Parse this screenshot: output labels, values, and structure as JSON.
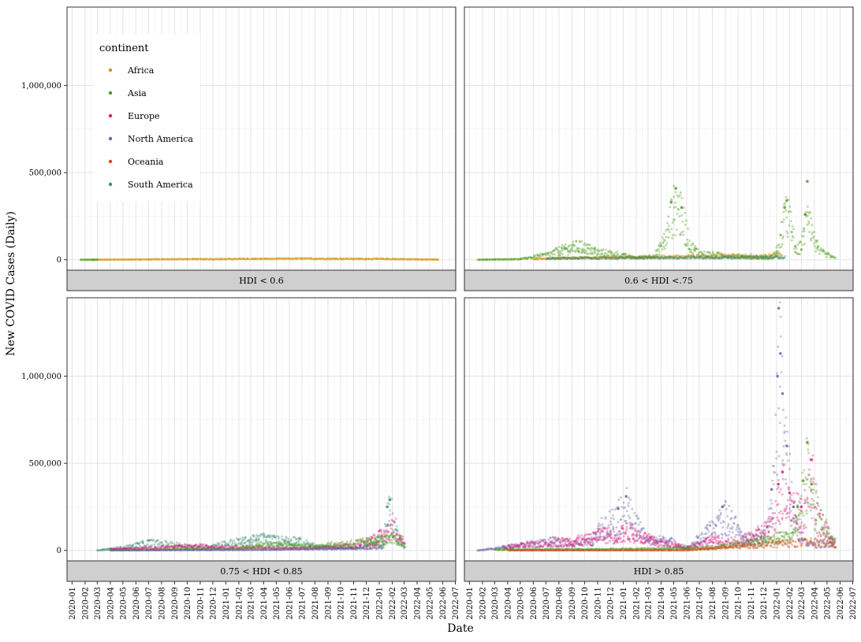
{
  "chart_data": {
    "type": "scatter",
    "xlabel": "Date",
    "ylabel": "New COVID Cases (Daily)",
    "x_ticks": [
      "2020-01",
      "2020-02",
      "2020-03",
      "2020-04",
      "2020-05",
      "2020-06",
      "2020-07",
      "2020-08",
      "2020-09",
      "2020-10",
      "2020-11",
      "2020-12",
      "2021-01",
      "2021-02",
      "2021-03",
      "2021-04",
      "2021-05",
      "2021-06",
      "2021-07",
      "2021-08",
      "2021-09",
      "2021-10",
      "2021-11",
      "2021-12",
      "2022-01",
      "2022-02",
      "2022-03",
      "2022-04",
      "2022-05",
      "2022-06",
      "2022-07"
    ],
    "y_ticks": [
      0,
      500000,
      1000000
    ],
    "y_tick_labels": [
      "0",
      "500,000",
      "1,000,000"
    ],
    "ylim": [
      -60000,
      1450000
    ],
    "xlim": [
      "2019-12-20",
      "2022-07-02"
    ],
    "grid": true,
    "legend": {
      "title": "continent",
      "position": "top-left inside first panel",
      "entries": [
        {
          "name": "Africa",
          "color": "#D7920C"
        },
        {
          "name": "Asia",
          "color": "#4E9A1E"
        },
        {
          "name": "Europe",
          "color": "#E0187A"
        },
        {
          "name": "North America",
          "color": "#6D65A9"
        },
        {
          "name": "Oceania",
          "color": "#D14A17"
        },
        {
          "name": "South America",
          "color": "#3B8C6E"
        }
      ]
    },
    "panels": [
      {
        "label": "HDI < 0.6",
        "series": [
          {
            "name": "Africa",
            "points": [
              [
                "2020-02-15",
                0
              ],
              [
                "2020-06-01",
                2000
              ],
              [
                "2020-09-01",
                4000
              ],
              [
                "2021-01-01",
                5000
              ],
              [
                "2021-07-01",
                8000
              ],
              [
                "2022-01-01",
                6000
              ],
              [
                "2022-05-20",
                1000
              ]
            ]
          },
          {
            "name": "Asia",
            "points": [
              [
                "2020-01-20",
                0
              ],
              [
                "2020-02-10",
                0
              ],
              [
                "2020-03-01",
                500
              ]
            ]
          }
        ]
      },
      {
        "label": "0.6 < HDI <.75",
        "series": [
          {
            "name": "Asia",
            "points": [
              [
                "2020-01-20",
                0
              ],
              [
                "2020-05-01",
                5000
              ],
              [
                "2020-07-01",
                35000
              ],
              [
                "2020-08-01",
                65000
              ],
              [
                "2020-09-15",
                95000
              ],
              [
                "2020-10-01",
                85000
              ],
              [
                "2020-11-01",
                55000
              ],
              [
                "2020-12-15",
                40000
              ],
              [
                "2021-02-01",
                12000
              ],
              [
                "2021-03-15",
                30000
              ],
              [
                "2021-04-10",
                150000
              ],
              [
                "2021-04-25",
                330000
              ],
              [
                "2021-05-06",
                410000
              ],
              [
                "2021-05-20",
                300000
              ],
              [
                "2021-06-10",
                90000
              ],
              [
                "2021-07-01",
                45000
              ],
              [
                "2021-08-01",
                38000
              ],
              [
                "2021-09-15",
                30000
              ],
              [
                "2021-11-01",
                15000
              ],
              [
                "2021-12-15",
                8000
              ],
              [
                "2022-01-05",
                80000
              ],
              [
                "2022-01-20",
                300000
              ],
              [
                "2022-01-25",
                340000
              ],
              [
                "2022-02-05",
                200000
              ],
              [
                "2022-02-15",
                50000
              ],
              [
                "2022-03-01",
                120000
              ],
              [
                "2022-03-10",
                260000
              ],
              [
                "2022-03-15",
                450000
              ],
              [
                "2022-03-25",
                190000
              ],
              [
                "2022-04-10",
                60000
              ],
              [
                "2022-05-20",
                10000
              ]
            ]
          },
          {
            "name": "Africa",
            "points": [
              [
                "2020-06-01",
                4000
              ],
              [
                "2020-08-01",
                12000
              ],
              [
                "2021-01-10",
                18000
              ],
              [
                "2021-07-15",
                25000
              ],
              [
                "2022-01-10",
                30000
              ]
            ]
          },
          {
            "name": "South America",
            "points": [
              [
                "2020-07-01",
                10000
              ],
              [
                "2021-03-01",
                15000
              ],
              [
                "2022-01-20",
                20000
              ]
            ]
          }
        ]
      },
      {
        "label": "0.75 < HDI < 0.85",
        "series": [
          {
            "name": "South America",
            "points": [
              [
                "2020-03-01",
                500
              ],
              [
                "2020-05-01",
                20000
              ],
              [
                "2020-07-01",
                55000
              ],
              [
                "2020-09-01",
                40000
              ],
              [
                "2020-11-01",
                20000
              ],
              [
                "2021-01-01",
                50000
              ],
              [
                "2021-03-01",
                70000
              ],
              [
                "2021-04-01",
                85000
              ],
              [
                "2021-05-01",
                70000
              ],
              [
                "2021-06-15",
                70000
              ],
              [
                "2021-08-01",
                30000
              ],
              [
                "2021-11-01",
                15000
              ],
              [
                "2022-01-10",
                80000
              ],
              [
                "2022-01-20",
                250000
              ],
              [
                "2022-01-26",
                290000
              ],
              [
                "2022-02-05",
                150000
              ],
              [
                "2022-03-01",
                30000
              ]
            ]
          },
          {
            "name": "Europe",
            "points": [
              [
                "2020-04-01",
                8000
              ],
              [
                "2020-11-01",
                30000
              ],
              [
                "2021-01-01",
                25000
              ],
              [
                "2021-06-01",
                15000
              ],
              [
                "2021-09-01",
                20000
              ],
              [
                "2021-11-15",
                40000
              ],
              [
                "2022-01-20",
                120000
              ],
              [
                "2022-02-01",
                190000
              ],
              [
                "2022-02-10",
                150000
              ],
              [
                "2022-03-01",
                40000
              ]
            ]
          },
          {
            "name": "Asia",
            "points": [
              [
                "2020-04-01",
                2000
              ],
              [
                "2021-01-01",
                10000
              ],
              [
                "2021-04-15",
                40000
              ],
              [
                "2021-08-01",
                30000
              ],
              [
                "2022-02-15",
                80000
              ],
              [
                "2022-03-01",
                30000
              ]
            ]
          },
          {
            "name": "North America",
            "points": [
              [
                "2020-04-01",
                1000
              ],
              [
                "2021-05-01",
                5000
              ],
              [
                "2022-01-10",
                20000
              ]
            ]
          }
        ]
      },
      {
        "label": "HDI > 0.85",
        "series": [
          {
            "name": "North America",
            "points": [
              [
                "2020-01-20",
                0
              ],
              [
                "2020-04-10",
                30000
              ],
              [
                "2020-07-20",
                65000
              ],
              [
                "2020-08-15",
                50000
              ],
              [
                "2020-10-15",
                60000
              ],
              [
                "2020-11-15",
                180000
              ],
              [
                "2020-12-20",
                240000
              ],
              [
                "2021-01-08",
                310000
              ],
              [
                "2021-01-25",
                190000
              ],
              [
                "2021-03-01",
                70000
              ],
              [
                "2021-04-15",
                70000
              ],
              [
                "2021-06-01",
                20000
              ],
              [
                "2021-08-01",
                150000
              ],
              [
                "2021-08-25",
                250000
              ],
              [
                "2021-09-15",
                200000
              ],
              [
                "2021-10-15",
                80000
              ],
              [
                "2021-12-01",
                100000
              ],
              [
                "2021-12-20",
                350000
              ],
              [
                "2022-01-03",
                1000000
              ],
              [
                "2022-01-06",
                1390000
              ],
              [
                "2022-01-10",
                1130000
              ],
              [
                "2022-01-15",
                900000
              ],
              [
                "2022-01-25",
                600000
              ],
              [
                "2022-02-10",
                250000
              ],
              [
                "2022-03-01",
                60000
              ],
              [
                "2022-04-01",
                40000
              ],
              [
                "2022-05-20",
                60000
              ]
            ]
          },
          {
            "name": "Europe",
            "points": [
              [
                "2020-03-20",
                20000
              ],
              [
                "2020-04-15",
                30000
              ],
              [
                "2020-10-15",
                80000
              ],
              [
                "2020-11-05",
                120000
              ],
              [
                "2020-12-20",
                100000
              ],
              [
                "2021-01-05",
                140000
              ],
              [
                "2021-03-20",
                60000
              ],
              [
                "2021-06-01",
                20000
              ],
              [
                "2021-07-20",
                70000
              ],
              [
                "2021-10-01",
                50000
              ],
              [
                "2021-11-20",
                120000
              ],
              [
                "2021-12-20",
                180000
              ],
              [
                "2022-01-05",
                380000
              ],
              [
                "2022-01-15",
                450000
              ],
              [
                "2022-02-01",
                330000
              ],
              [
                "2022-03-01",
                250000
              ],
              [
                "2022-03-25",
                520000
              ],
              [
                "2022-04-10",
                200000
              ],
              [
                "2022-05-20",
                50000
              ]
            ]
          },
          {
            "name": "Asia",
            "points": [
              [
                "2020-03-01",
                5000
              ],
              [
                "2021-01-15",
                10000
              ],
              [
                "2021-08-01",
                20000
              ],
              [
                "2022-02-05",
                100000
              ],
              [
                "2022-02-20",
                250000
              ],
              [
                "2022-03-05",
                400000
              ],
              [
                "2022-03-15",
                620000
              ],
              [
                "2022-03-25",
                380000
              ],
              [
                "2022-04-15",
                200000
              ],
              [
                "2022-05-20",
                40000
              ]
            ]
          },
          {
            "name": "Oceania",
            "points": [
              [
                "2020-04-01",
                500
              ],
              [
                "2021-06-01",
                1000
              ],
              [
                "2022-01-10",
                50000
              ],
              [
                "2022-04-01",
                60000
              ],
              [
                "2022-05-20",
                40000
              ]
            ]
          }
        ]
      }
    ]
  }
}
